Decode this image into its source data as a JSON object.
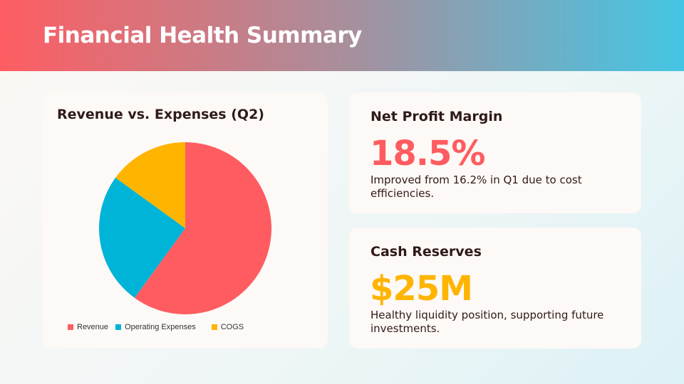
{
  "header": {
    "title": "Financial Health Summary"
  },
  "chart_data": {
    "type": "pie",
    "title": "Revenue vs. Expenses (Q2)",
    "categories": [
      "Revenue",
      "Operating Expenses",
      "COGS"
    ],
    "values": [
      60,
      25,
      15
    ],
    "colors": [
      "#fe5c61",
      "#00b4d8",
      "#ffb400"
    ],
    "legend": "bottom"
  },
  "metrics": [
    {
      "title": "Net Profit Margin",
      "value": "18.5%",
      "color": "#fe5c61",
      "description": "Improved from 16.2% in Q1 due to cost efficiencies."
    },
    {
      "title": "Cash Reserves",
      "value": "$25M",
      "color": "#ffb400",
      "description": "Healthy liquidity position, supporting future investments."
    }
  ]
}
